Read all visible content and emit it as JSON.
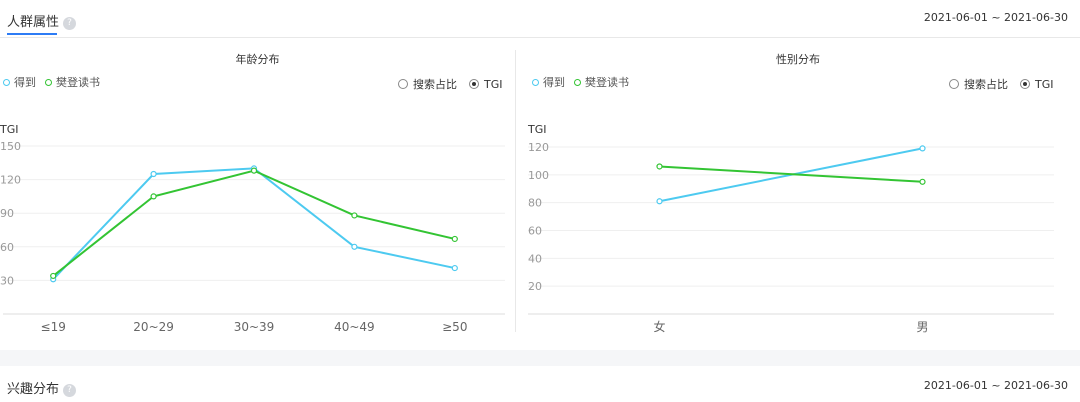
{
  "section": {
    "title": "人群属性",
    "help_icon": "question-circle-icon",
    "date_range": "2021-06-01 ~ 2021-06-30"
  },
  "colors": {
    "dedao": "#4dcaf0",
    "fandeng": "#33c433",
    "grid": "#efefef",
    "axis": "#dddddd"
  },
  "radio_options": [
    {
      "label": "搜索占比",
      "selected": false
    },
    {
      "label": "TGI",
      "selected": true
    }
  ],
  "chart_data": [
    {
      "type": "line",
      "title": "年龄分布",
      "ylabel": "TGI",
      "categories": [
        "≤19",
        "20~29",
        "30~39",
        "40~49",
        "≥50"
      ],
      "yticks": [
        30,
        60,
        90,
        120,
        150
      ],
      "ylim": [
        0,
        150
      ],
      "grid": true,
      "legend": "top-left",
      "series": [
        {
          "name": "得到",
          "color": "#4dcaf0",
          "values": [
            31,
            125,
            130,
            60,
            41
          ]
        },
        {
          "name": "樊登读书",
          "color": "#33c433",
          "values": [
            34,
            105,
            128,
            88,
            67
          ]
        }
      ]
    },
    {
      "type": "line",
      "title": "性别分布",
      "ylabel": "TGI",
      "categories": [
        "女",
        "男"
      ],
      "yticks": [
        20,
        40,
        60,
        80,
        100,
        120
      ],
      "ylim": [
        0,
        120
      ],
      "grid": true,
      "legend": "top-left",
      "series": [
        {
          "name": "得到",
          "color": "#4dcaf0",
          "values": [
            81,
            119
          ]
        },
        {
          "name": "樊登读书",
          "color": "#33c433",
          "values": [
            106,
            95
          ]
        }
      ]
    }
  ],
  "section2": {
    "title": "兴趣分布",
    "help_icon": "question-circle-icon",
    "date_range": "2021-06-01 ~ 2021-06-30"
  }
}
